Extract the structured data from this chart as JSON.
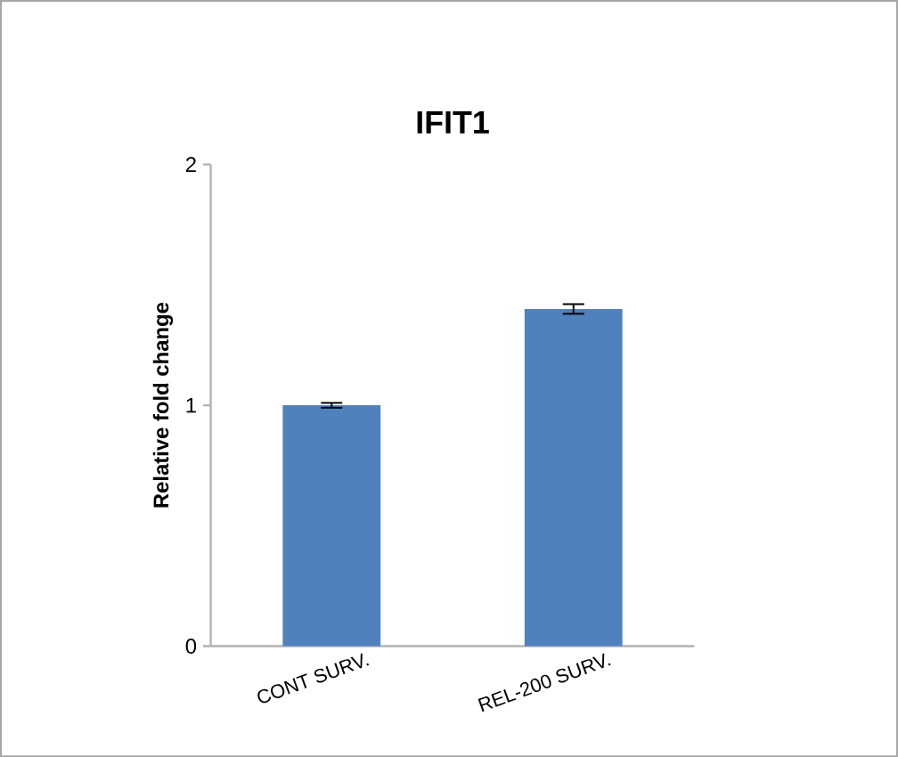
{
  "chart_data": {
    "type": "bar",
    "title": "IFIT1",
    "ylabel": "Relative fold change",
    "categories": [
      "CONT SURV.",
      "REL-200 SURV."
    ],
    "values": [
      1.0,
      1.4
    ],
    "errors": [
      0.01,
      0.02
    ],
    "color": "#4f81bd",
    "ylim": [
      0,
      2
    ],
    "yticks": [
      0,
      1,
      2
    ]
  }
}
